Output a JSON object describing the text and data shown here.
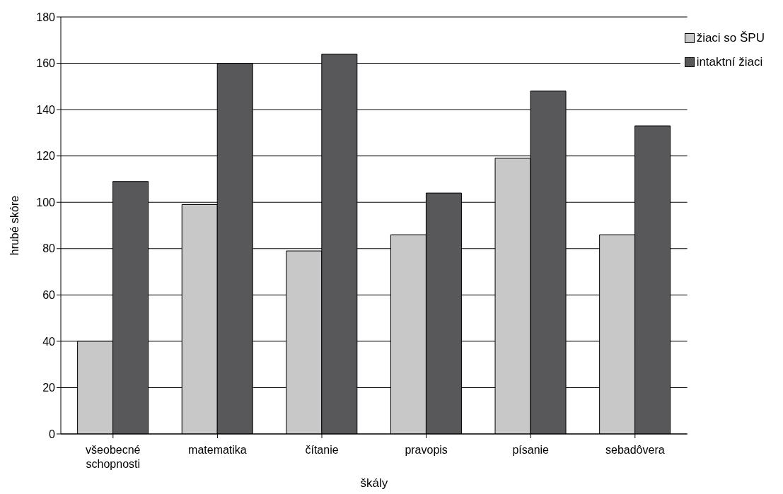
{
  "chart_data": {
    "type": "bar",
    "xlabel": "škály",
    "ylabel": "hrubé skóre",
    "categories": [
      "všeobecné schopnosti",
      "matematika",
      "čítanie",
      "pravopis",
      "písanie",
      "sebadôvera"
    ],
    "series": [
      {
        "name": "žiaci so ŠPU",
        "color": "#c8c8c8",
        "values": [
          40,
          99,
          79,
          86,
          119,
          86
        ]
      },
      {
        "name": "intaktní žiaci",
        "color": "#58585a",
        "values": [
          109,
          160,
          164,
          104,
          148,
          133
        ]
      }
    ],
    "ylim": [
      0,
      180
    ],
    "yticks": [
      0,
      20,
      40,
      60,
      80,
      100,
      120,
      140,
      160,
      180
    ],
    "grid": "y",
    "legend": "top right"
  }
}
